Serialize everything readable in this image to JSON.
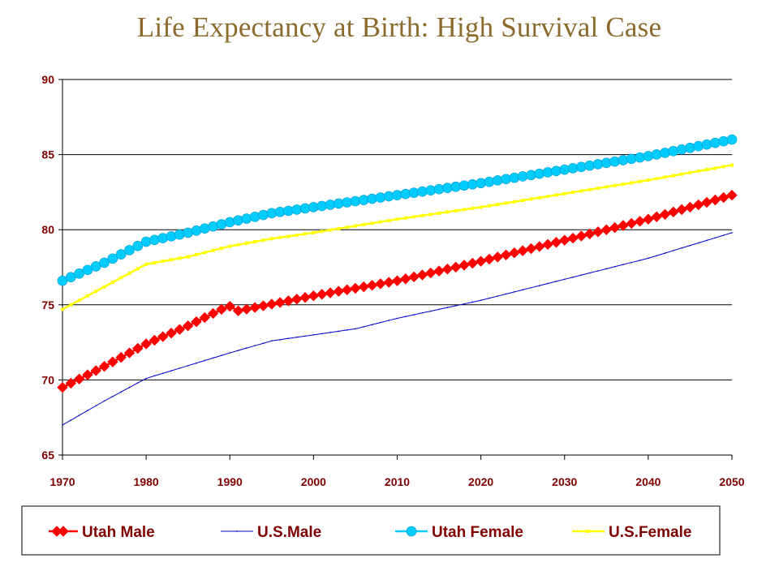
{
  "title": "Life Expectancy at Birth: High Survival Case",
  "colors": {
    "utah_male": "#ff0000",
    "us_male": "#0000cc",
    "utah_female": "#00ccff",
    "us_female": "#ffff00",
    "tick_text": "#800000",
    "title_text": "#8b6a2b"
  },
  "chart_data": {
    "type": "line",
    "title": "Life Expectancy at Birth: High Survival Case",
    "xlabel": "",
    "ylabel": "",
    "xlim": [
      1970,
      2050
    ],
    "ylim": [
      65,
      90
    ],
    "x_ticks": [
      1970,
      1980,
      1990,
      2000,
      2010,
      2020,
      2030,
      2040,
      2050
    ],
    "y_ticks": [
      65,
      70,
      75,
      80,
      85,
      90
    ],
    "grid": "horizontal",
    "legend_position": "bottom",
    "series": [
      {
        "name": "Utah Male",
        "marker": "diamond",
        "color": "#ff0000",
        "points": [
          [
            1970,
            69.5
          ],
          [
            1975,
            70.9
          ],
          [
            1980,
            72.4
          ],
          [
            1985,
            73.6
          ],
          [
            1989,
            74.7
          ],
          [
            1990,
            74.9
          ],
          [
            1991,
            74.6
          ],
          [
            2000,
            75.6
          ],
          [
            2010,
            76.6
          ],
          [
            2020,
            77.9
          ],
          [
            2030,
            79.3
          ],
          [
            2040,
            80.7
          ],
          [
            2050,
            82.3
          ]
        ]
      },
      {
        "name": "U.S.Male",
        "marker": "small-dot",
        "color": "#0000cc",
        "points": [
          [
            1970,
            67.0
          ],
          [
            1975,
            68.6
          ],
          [
            1980,
            70.1
          ],
          [
            1990,
            71.8
          ],
          [
            1995,
            72.6
          ],
          [
            2000,
            73.0
          ],
          [
            2005,
            73.4
          ],
          [
            2010,
            74.1
          ],
          [
            2020,
            75.3
          ],
          [
            2030,
            76.7
          ],
          [
            2040,
            78.1
          ],
          [
            2050,
            79.8
          ]
        ]
      },
      {
        "name": "Utah Female",
        "marker": "circle",
        "color": "#00ccff",
        "points": [
          [
            1970,
            76.6
          ],
          [
            1975,
            77.8
          ],
          [
            1980,
            79.2
          ],
          [
            1985,
            79.8
          ],
          [
            1990,
            80.5
          ],
          [
            1995,
            81.1
          ],
          [
            2000,
            81.5
          ],
          [
            2010,
            82.3
          ],
          [
            2020,
            83.1
          ],
          [
            2030,
            84.0
          ],
          [
            2040,
            84.9
          ],
          [
            2050,
            86.0
          ]
        ]
      },
      {
        "name": "U.S.Female",
        "marker": "square",
        "color": "#ffff00",
        "points": [
          [
            1970,
            74.7
          ],
          [
            1975,
            76.2
          ],
          [
            1980,
            77.7
          ],
          [
            1985,
            78.2
          ],
          [
            1990,
            78.9
          ],
          [
            1995,
            79.4
          ],
          [
            2000,
            79.8
          ],
          [
            2010,
            80.7
          ],
          [
            2020,
            81.5
          ],
          [
            2030,
            82.4
          ],
          [
            2040,
            83.3
          ],
          [
            2050,
            84.3
          ]
        ]
      }
    ]
  }
}
